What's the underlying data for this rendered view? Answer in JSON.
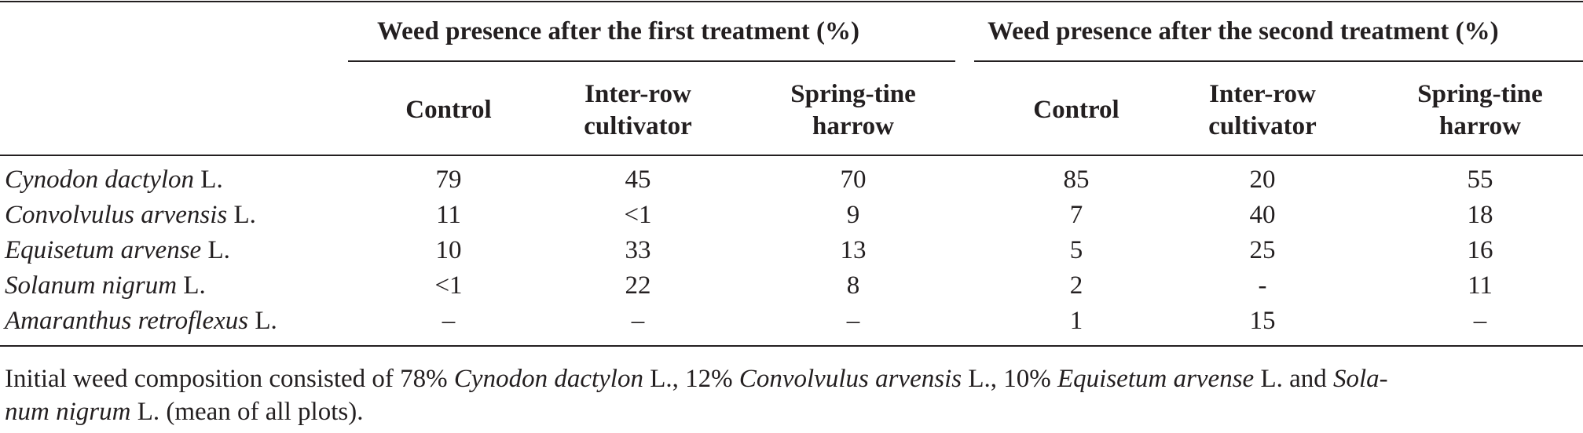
{
  "table": {
    "group_headers": [
      "Weed presence after the first treatment (%)",
      "Weed presence after the second treatment (%)"
    ],
    "column_headers": [
      [
        "Control"
      ],
      [
        "Inter-row",
        "cultivator"
      ],
      [
        "Spring-tine",
        "harrow"
      ],
      [
        "Control"
      ],
      [
        "Inter-row",
        "cultivator"
      ],
      [
        "Spring-tine",
        "harrow"
      ]
    ],
    "rows": [
      {
        "species": "Cynodon dactylon",
        "authority": " L.",
        "values": [
          "79",
          "45",
          "70",
          "85",
          "20",
          "55"
        ]
      },
      {
        "species": "Convolvulus arvensis",
        "authority": " L.",
        "values": [
          "11",
          "<1",
          "9",
          "7",
          "40",
          "18"
        ]
      },
      {
        "species": "Equisetum arvense",
        "authority": " L.",
        "values": [
          "10",
          "33",
          "13",
          "5",
          "25",
          "16"
        ]
      },
      {
        "species": "Solanum nigrum",
        "authority": " L.",
        "values": [
          "<1",
          "22",
          "8",
          "2",
          "-",
          "11"
        ]
      },
      {
        "species": "Amaranthus retroflexus",
        "authority": " L.",
        "values": [
          "–",
          "–",
          "–",
          "1",
          "15",
          "–"
        ]
      }
    ]
  },
  "footnote": {
    "line1_parts": [
      {
        "text": "Initial weed composition consisted of 78% ",
        "italic": false
      },
      {
        "text": "Cynodon dactylon",
        "italic": true
      },
      {
        "text": " L., 12% ",
        "italic": false
      },
      {
        "text": "Convolvulus arvensis",
        "italic": true
      },
      {
        "text": " L., 10% ",
        "italic": false
      },
      {
        "text": "Equisetum arvense",
        "italic": true
      },
      {
        "text": " L. and ",
        "italic": false
      },
      {
        "text": "Sola-",
        "italic": true
      }
    ],
    "line2_parts": [
      {
        "text": "num nigrum",
        "italic": true
      },
      {
        "text": " L. (mean of all plots).",
        "italic": false
      }
    ]
  }
}
